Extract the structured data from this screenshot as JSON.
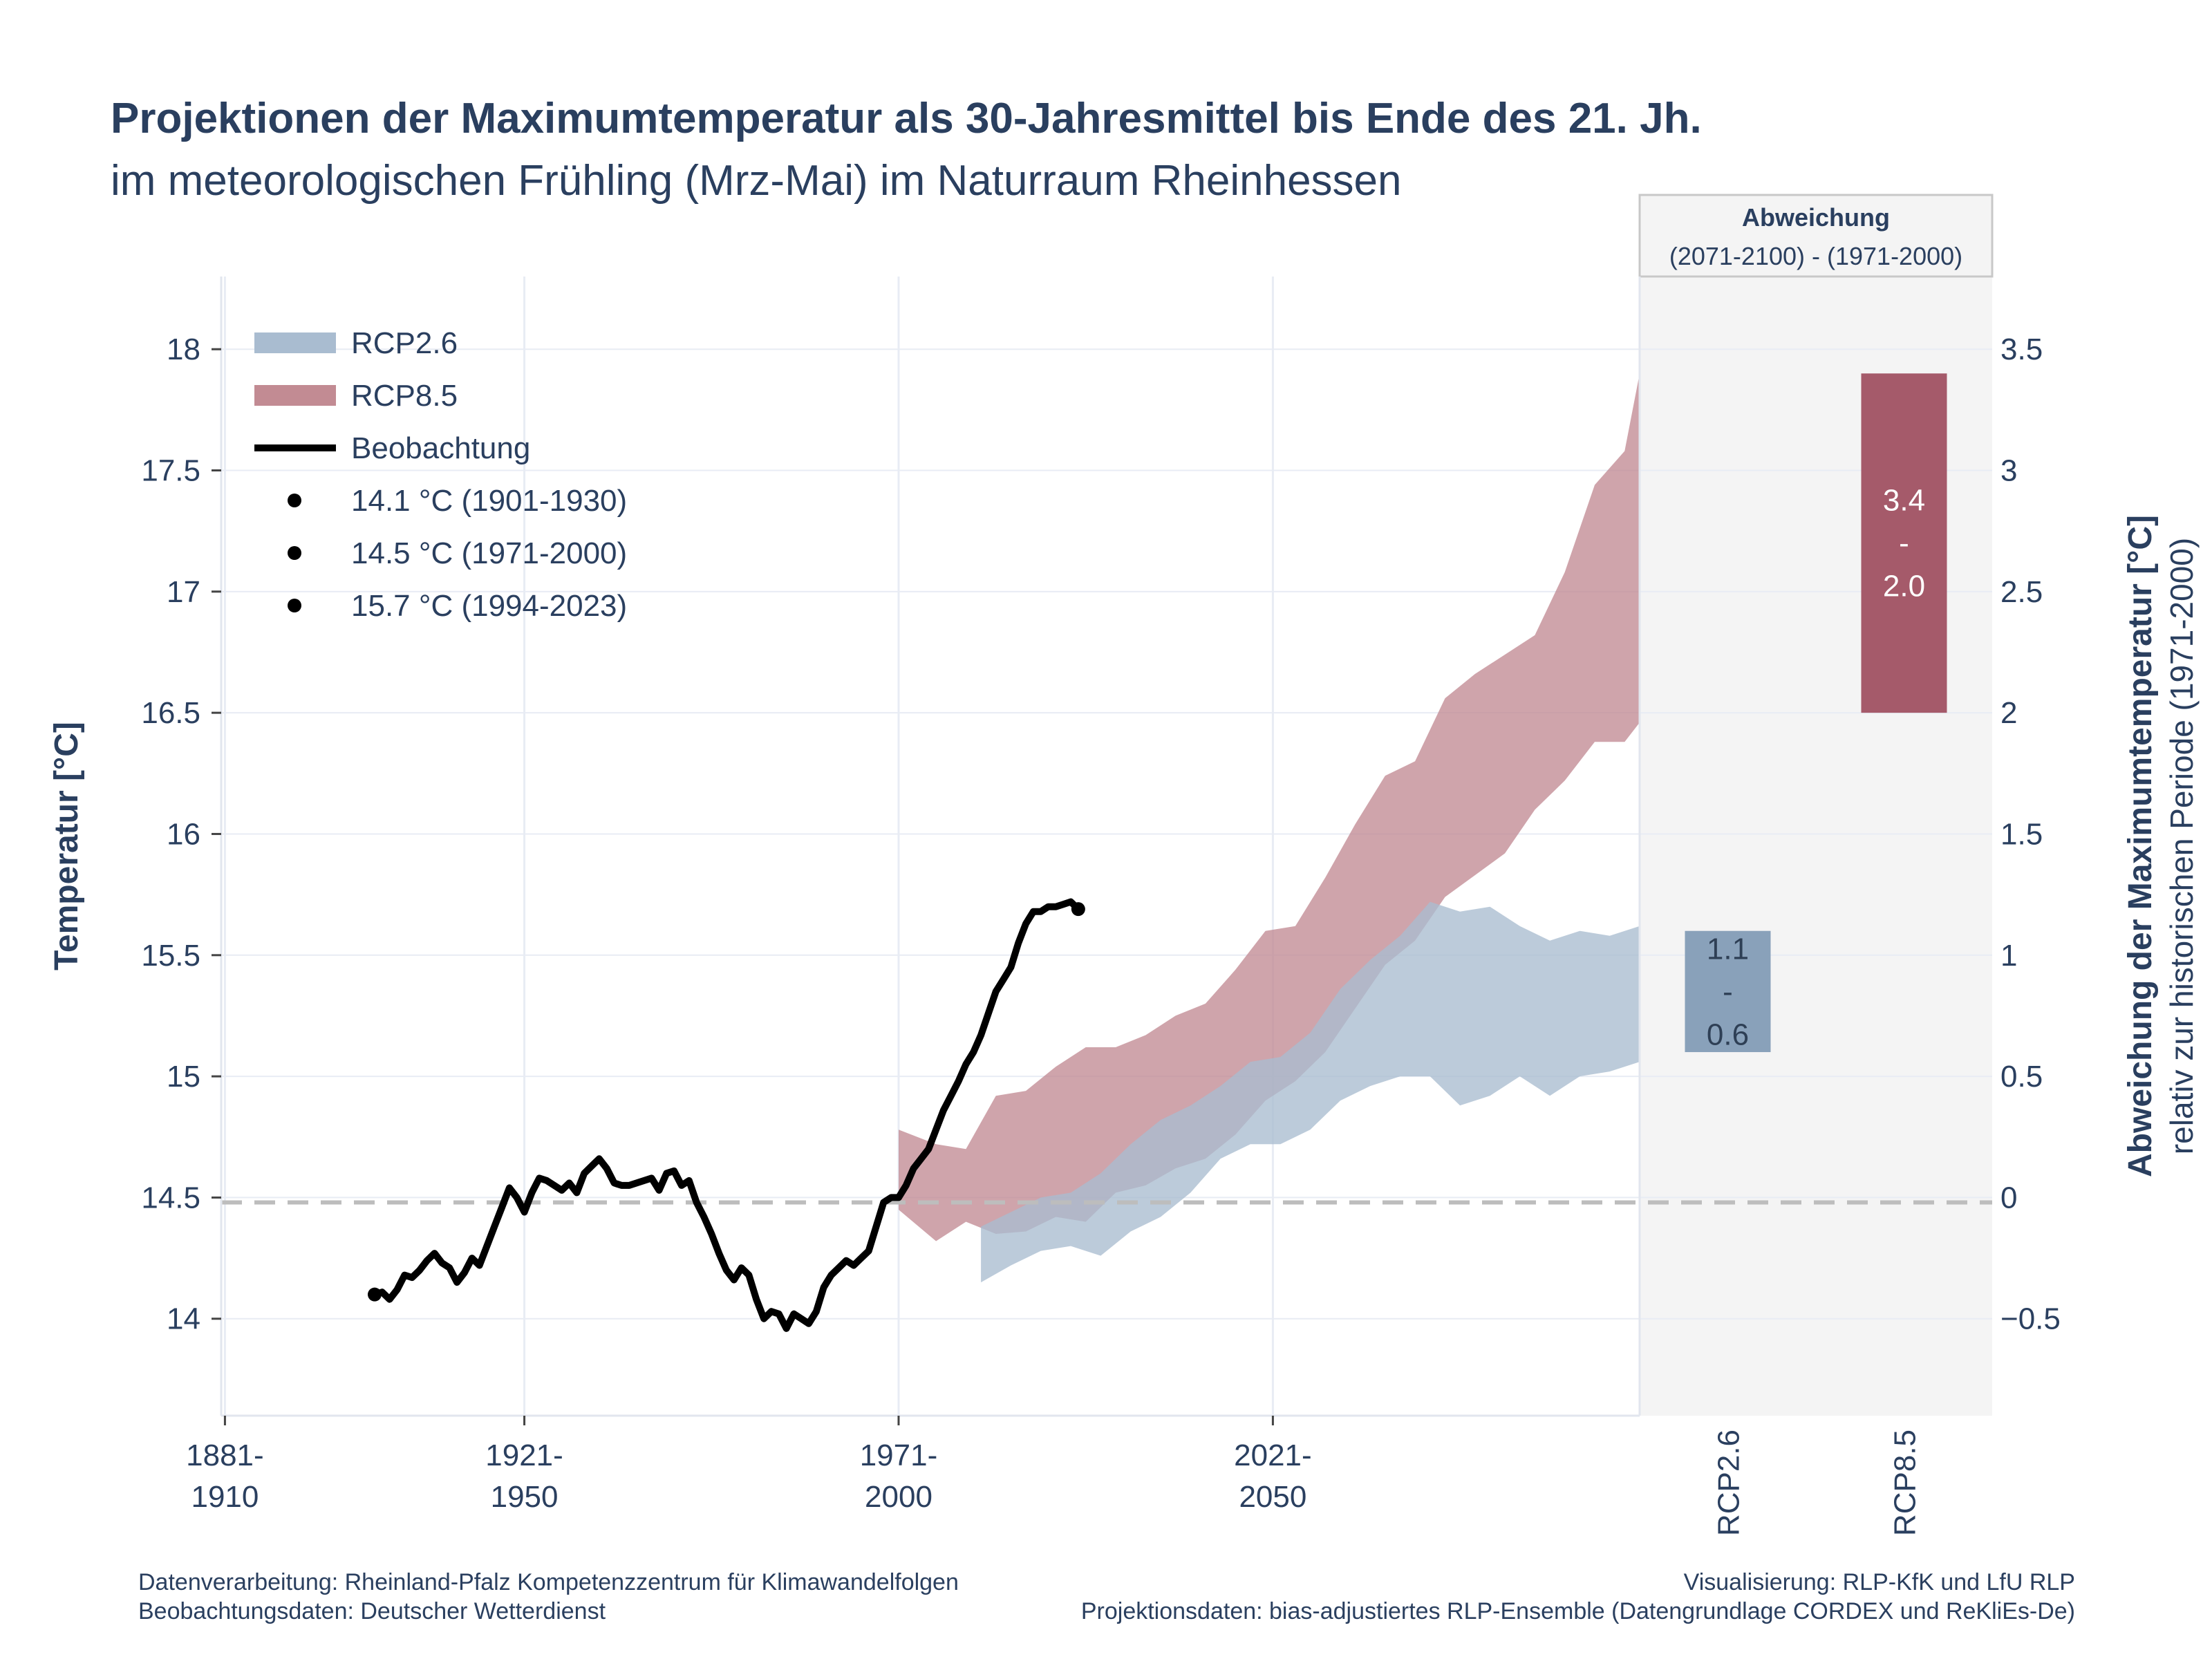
{
  "chart_data": {
    "type": "area",
    "title": "Projektionen der Maximumtemperatur als 30-Jahresmittel bis Ende des 21. Jh.",
    "subtitle": "im meteorologischen Frühling (Mrz-Mai) im Naturraum Rheinhessen",
    "ylabel": "Temperatur [°C]",
    "y2label": "Abweichung der Maximumtemperatur [°C]",
    "y2label_sub": "relativ zur historischen Periode (1971-2000)",
    "ylim": [
      13.6,
      18.3
    ],
    "y2lim": [
      -0.9,
      3.8
    ],
    "xlim": [
      1894.5,
      2084
    ],
    "grid": true,
    "legend_position": "top-left",
    "y_ticks": [
      14,
      14.5,
      15,
      15.5,
      16,
      16.5,
      17,
      17.5,
      18
    ],
    "y_tick_labels": [
      "14",
      "14.5",
      "15",
      "15.5",
      "16",
      "16.5",
      "17",
      "17.5",
      "18"
    ],
    "y2_ticks": [
      -0.5,
      0,
      0.5,
      1,
      1.5,
      2,
      2.5,
      3,
      3.5
    ],
    "y2_tick_labels": [
      "−0.5",
      "0",
      "0.5",
      "1",
      "1.5",
      "2",
      "2.5",
      "3",
      "3.5"
    ],
    "x_ticks": [
      {
        "x": 1895,
        "line1": "1881-",
        "line2": "1910"
      },
      {
        "x": 1935,
        "line1": "1921-",
        "line2": "1950"
      },
      {
        "x": 1985,
        "line1": "1971-",
        "line2": "2000"
      },
      {
        "x": 2035,
        "line1": "2021-",
        "line2": "2050"
      }
    ],
    "reference_line": {
      "y": 14.48,
      "color": "#bdbdbd"
    },
    "legend": [
      {
        "label": "RCP2.6",
        "kind": "band",
        "color": "#a9bcd0"
      },
      {
        "label": "RCP8.5",
        "kind": "band",
        "color": "#c28b93"
      },
      {
        "label": "Beobachtung",
        "kind": "line",
        "color": "#000000"
      },
      {
        "label": "14.1 °C (1901-1930)",
        "kind": "dot",
        "color": "#000000"
      },
      {
        "label": "14.5 °C (1971-2000)",
        "kind": "dot",
        "color": "#000000"
      },
      {
        "label": "15.7 °C (1994-2023)",
        "kind": "dot",
        "color": "#000000"
      }
    ],
    "series": [
      {
        "name": "Beobachtung",
        "type": "line",
        "color": "#000000",
        "x": [
          1915,
          1916,
          1917,
          1918,
          1919,
          1920,
          1921,
          1922,
          1923,
          1924,
          1925,
          1926,
          1927,
          1928,
          1929,
          1930,
          1931,
          1932,
          1933,
          1934,
          1935,
          1936,
          1937,
          1938,
          1939,
          1940,
          1941,
          1942,
          1943,
          1944,
          1945,
          1946,
          1947,
          1948,
          1949,
          1950,
          1951,
          1952,
          1953,
          1954,
          1955,
          1956,
          1957,
          1958,
          1959,
          1960,
          1961,
          1962,
          1963,
          1964,
          1965,
          1966,
          1967,
          1968,
          1969,
          1970,
          1971,
          1972,
          1973,
          1974,
          1975,
          1976,
          1977,
          1978,
          1979,
          1980,
          1981,
          1982,
          1983,
          1984,
          1985,
          1986,
          1987,
          1988,
          1989,
          1990,
          1991,
          1992,
          1993,
          1994,
          1995,
          1996,
          1997,
          1998,
          1999,
          2000,
          2001,
          2002,
          2003,
          2004,
          2005,
          2006,
          2007,
          2008,
          2009
        ],
        "values": [
          14.1,
          14.11,
          14.08,
          14.12,
          14.18,
          14.17,
          14.2,
          14.24,
          14.27,
          14.23,
          14.21,
          14.15,
          14.19,
          14.25,
          14.22,
          14.3,
          14.38,
          14.46,
          14.54,
          14.5,
          14.44,
          14.52,
          14.58,
          14.57,
          14.55,
          14.53,
          14.56,
          14.52,
          14.6,
          14.63,
          14.66,
          14.62,
          14.56,
          14.55,
          14.55,
          14.56,
          14.57,
          14.58,
          14.53,
          14.6,
          14.61,
          14.55,
          14.57,
          14.48,
          14.42,
          14.35,
          14.27,
          14.2,
          14.16,
          14.21,
          14.18,
          14.08,
          14.0,
          14.03,
          14.02,
          13.96,
          14.02,
          14.0,
          13.98,
          14.03,
          14.13,
          14.18,
          14.21,
          14.24,
          14.22,
          14.25,
          14.28,
          14.38,
          14.48,
          14.5,
          14.5,
          14.55,
          14.62,
          14.66,
          14.7,
          14.78,
          14.86,
          14.92,
          14.98,
          15.05,
          15.1,
          15.17,
          15.26,
          15.35,
          15.4,
          15.45,
          15.55,
          15.63,
          15.68,
          15.68,
          15.7,
          15.7,
          15.71,
          15.72,
          15.69
        ]
      },
      {
        "name": "RCP8.5",
        "type": "band",
        "color": "#c28b93",
        "x": [
          1985,
          1990,
          1994,
          1998,
          2002,
          2006,
          2010,
          2014,
          2018,
          2022,
          2026,
          2030,
          2034,
          2038,
          2042,
          2046,
          2050,
          2054,
          2058,
          2062,
          2066,
          2070,
          2074,
          2078,
          2082,
          2084
        ],
        "upper": [
          14.78,
          14.72,
          14.7,
          14.92,
          14.94,
          15.04,
          15.12,
          15.12,
          15.17,
          15.25,
          15.3,
          15.44,
          15.6,
          15.62,
          15.82,
          16.04,
          16.24,
          16.3,
          16.56,
          16.66,
          16.74,
          16.82,
          17.08,
          17.44,
          17.58,
          17.9
        ],
        "lower": [
          14.45,
          14.32,
          14.4,
          14.35,
          14.36,
          14.42,
          14.4,
          14.52,
          14.55,
          14.62,
          14.66,
          14.76,
          14.9,
          14.98,
          15.1,
          15.28,
          15.46,
          15.56,
          15.74,
          15.83,
          15.92,
          16.1,
          16.22,
          16.38,
          16.38,
          16.46
        ]
      },
      {
        "name": "RCP2.6",
        "type": "band",
        "color": "#a9bcd0",
        "x": [
          1996,
          2000,
          2004,
          2008,
          2012,
          2016,
          2020,
          2024,
          2028,
          2032,
          2036,
          2040,
          2044,
          2048,
          2052,
          2056,
          2060,
          2064,
          2068,
          2072,
          2076,
          2080,
          2084
        ],
        "upper": [
          14.38,
          14.44,
          14.5,
          14.52,
          14.6,
          14.72,
          14.82,
          14.88,
          14.96,
          15.06,
          15.08,
          15.18,
          15.36,
          15.48,
          15.58,
          15.72,
          15.68,
          15.7,
          15.62,
          15.56,
          15.6,
          15.58,
          15.62
        ],
        "lower": [
          14.15,
          14.22,
          14.28,
          14.3,
          14.26,
          14.36,
          14.42,
          14.52,
          14.66,
          14.72,
          14.72,
          14.78,
          14.9,
          14.96,
          15.0,
          15.0,
          14.88,
          14.92,
          15.0,
          14.92,
          15.0,
          15.02,
          15.06
        ]
      }
    ],
    "side_panel": {
      "title": "Abweichung",
      "subtitle": "(2071-2100) - (1971-2000)",
      "categories": [
        "RCP2.6",
        "RCP8.5"
      ],
      "bars": [
        {
          "category": "RCP2.6",
          "low": 0.6,
          "high": 1.1,
          "label_high": "1.1",
          "label_sep": "-",
          "label_low": "0.6",
          "color": "#89a1ba",
          "label_color": "#2e3f55"
        },
        {
          "category": "RCP8.5",
          "low": 2.0,
          "high": 3.4,
          "label_high": "3.4",
          "label_sep": "-",
          "label_low": "2.0",
          "color": "#a55a6a",
          "label_color": "#ffffff"
        }
      ]
    }
  },
  "footer": {
    "left_line1": "Datenverarbeitung: Rheinland-Pfalz Kompetenzzentrum für Klimawandelfolgen",
    "left_line2": "Beobachtungsdaten:  Deutscher Wetterdienst",
    "right_line1": "Visualisierung: RLP-KfK und LfU RLP",
    "right_line2": "Projektionsdaten: bias-adjustiertes RLP-Ensemble (Datengrundlage CORDEX und ReKliEs-De)"
  },
  "colors": {
    "text": "#2a3f5f",
    "grid": "#e8ecf4",
    "panel_bg": "#f4f4f4"
  }
}
